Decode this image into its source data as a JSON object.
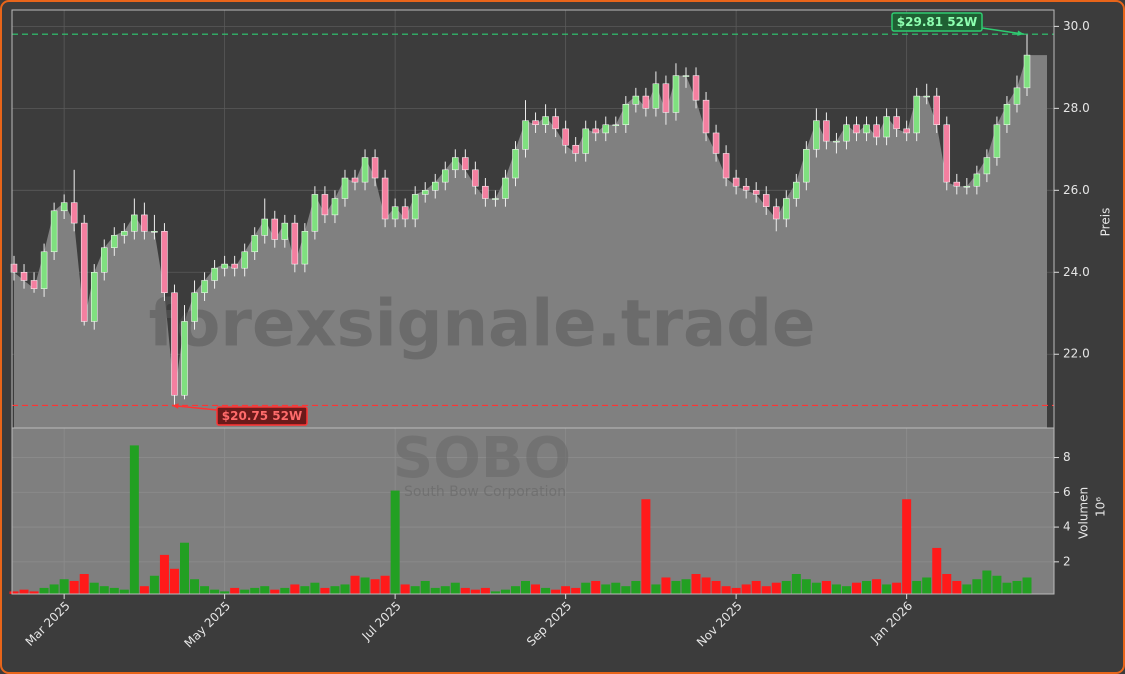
{
  "chart_data": [
    {
      "type": "candlestick",
      "ylabel": "Preis",
      "grid": true,
      "ylim": [
        20.2,
        30.4
      ],
      "yticks": [
        {
          "value": 22,
          "label": "22.0"
        },
        {
          "value": 24,
          "label": "24.0"
        },
        {
          "value": 26,
          "label": "26.0"
        },
        {
          "value": 28,
          "label": "28.0"
        },
        {
          "value": 30,
          "label": "30.0"
        }
      ],
      "up_color": "#7fe07f",
      "down_color": "#f47fa0",
      "area_color": "#808080",
      "watermark": "forexsignale.trade",
      "annotations": [
        {
          "text": "$29.81 52W",
          "value": 29.81,
          "color": "#2ecc71"
        },
        {
          "text": "$20.75 52W",
          "value": 20.75,
          "color": "#ff3333"
        }
      ],
      "open": [
        24.2,
        24.0,
        23.8,
        23.6,
        24.5,
        25.5,
        25.7,
        25.2,
        22.8,
        24.0,
        24.6,
        24.9,
        25.0,
        25.4,
        25.0,
        25.0,
        23.5,
        21.0,
        22.8,
        23.5,
        23.8,
        24.1,
        24.2,
        24.1,
        24.5,
        24.9,
        25.3,
        24.8,
        25.2,
        24.2,
        25.0,
        25.9,
        25.4,
        25.8,
        26.3,
        26.2,
        26.8,
        26.3,
        25.3,
        25.6,
        25.3,
        25.9,
        26.0,
        26.2,
        26.5,
        26.8,
        26.5,
        26.1,
        25.8,
        25.8,
        26.3,
        27.0,
        27.7,
        27.6,
        27.8,
        27.5,
        27.1,
        26.9,
        27.5,
        27.4,
        27.6,
        27.6,
        28.1,
        28.3,
        28.0,
        28.6,
        27.9,
        28.8,
        28.8,
        28.2,
        27.4,
        26.9,
        26.3,
        26.1,
        26.0,
        25.9,
        25.6,
        25.3,
        25.8,
        26.2,
        27.0,
        27.7,
        27.2,
        27.2,
        27.6,
        27.4,
        27.6,
        27.3,
        27.8,
        27.5,
        27.4,
        28.3,
        28.3,
        27.6,
        26.2,
        26.1,
        26.1,
        26.4,
        26.8,
        27.6,
        28.1,
        28.5
      ],
      "high": [
        24.4,
        24.2,
        24.0,
        24.7,
        25.7,
        25.9,
        26.5,
        25.4,
        24.2,
        24.8,
        25.1,
        25.2,
        25.8,
        25.7,
        25.4,
        25.2,
        23.7,
        23.2,
        23.8,
        24.0,
        24.3,
        24.4,
        24.4,
        24.7,
        25.1,
        25.8,
        25.5,
        25.4,
        25.4,
        25.2,
        26.1,
        26.1,
        26.0,
        26.5,
        26.5,
        27.0,
        27.0,
        26.5,
        25.8,
        25.8,
        26.1,
        26.2,
        26.4,
        26.7,
        27.0,
        27.0,
        26.7,
        26.3,
        26.0,
        26.5,
        27.2,
        28.2,
        27.9,
        28.1,
        28.0,
        27.7,
        27.3,
        27.7,
        27.7,
        27.8,
        27.8,
        28.3,
        28.5,
        28.5,
        28.9,
        28.8,
        29.1,
        29.0,
        29.0,
        28.4,
        27.6,
        27.1,
        26.5,
        26.3,
        26.2,
        26.1,
        25.8,
        26.0,
        26.4,
        27.2,
        28.0,
        27.9,
        27.4,
        27.8,
        27.8,
        27.8,
        27.8,
        28.0,
        28.0,
        27.7,
        28.5,
        28.6,
        28.5,
        27.8,
        26.4,
        26.3,
        26.6,
        27.0,
        27.8,
        28.3,
        28.8,
        29.81
      ],
      "low": [
        23.8,
        23.6,
        23.5,
        23.4,
        24.3,
        25.3,
        25.0,
        22.7,
        22.6,
        23.8,
        24.4,
        24.7,
        24.8,
        24.8,
        24.8,
        23.3,
        20.75,
        20.9,
        22.6,
        23.3,
        23.6,
        23.9,
        23.9,
        23.9,
        24.3,
        24.7,
        24.6,
        24.6,
        24.0,
        24.0,
        24.8,
        25.2,
        25.2,
        25.6,
        26.0,
        26.0,
        26.1,
        25.1,
        25.1,
        25.1,
        25.1,
        25.7,
        25.8,
        26.0,
        26.3,
        26.3,
        25.9,
        25.6,
        25.6,
        25.6,
        26.1,
        26.8,
        27.4,
        27.4,
        27.3,
        26.9,
        26.7,
        26.7,
        27.2,
        27.2,
        27.4,
        27.4,
        27.9,
        27.8,
        27.8,
        27.6,
        27.7,
        28.5,
        28.0,
        27.2,
        26.7,
        26.1,
        25.9,
        25.8,
        25.7,
        25.4,
        25.0,
        25.1,
        25.6,
        26.0,
        26.8,
        27.0,
        26.9,
        27.0,
        27.2,
        27.2,
        27.1,
        27.1,
        27.3,
        27.2,
        27.2,
        28.1,
        27.4,
        26.0,
        25.9,
        25.9,
        25.9,
        26.2,
        26.6,
        27.4,
        27.9,
        28.3
      ],
      "close": [
        24.0,
        23.8,
        23.6,
        24.5,
        25.5,
        25.7,
        25.2,
        22.8,
        24.0,
        24.6,
        24.9,
        25.0,
        25.4,
        25.0,
        25.0,
        23.5,
        21.0,
        22.8,
        23.5,
        23.8,
        24.1,
        24.2,
        24.1,
        24.5,
        24.9,
        25.3,
        24.8,
        25.2,
        24.2,
        25.0,
        25.9,
        25.4,
        25.8,
        26.3,
        26.2,
        26.8,
        26.3,
        25.3,
        25.6,
        25.3,
        25.9,
        26.0,
        26.2,
        26.5,
        26.8,
        26.5,
        26.1,
        25.8,
        25.8,
        26.3,
        27.0,
        27.7,
        27.6,
        27.8,
        27.5,
        27.1,
        26.9,
        27.5,
        27.4,
        27.6,
        27.6,
        28.1,
        28.3,
        28.0,
        28.6,
        27.9,
        28.8,
        28.8,
        28.2,
        27.4,
        26.9,
        26.3,
        26.1,
        26.0,
        25.9,
        25.6,
        25.3,
        25.8,
        26.2,
        27.0,
        27.7,
        27.2,
        27.2,
        27.6,
        27.4,
        27.6,
        27.3,
        27.8,
        27.5,
        27.4,
        28.3,
        28.3,
        27.6,
        26.2,
        26.1,
        26.1,
        26.4,
        26.8,
        27.6,
        28.1,
        28.5,
        29.3
      ]
    },
    {
      "type": "bar",
      "ylabel": "Volumen",
      "scale_label": "10⁶",
      "grid": true,
      "symbol": "SOBO",
      "company": "South Bow Corporation",
      "ylim": [
        0.15,
        9.7
      ],
      "yticks": [
        2,
        4,
        6,
        8
      ],
      "up_color": "#22a022",
      "down_color": "#ff1a1a",
      "categories": [
        null,
        null,
        null,
        null,
        null,
        "Mar 2025",
        null,
        null,
        null,
        null,
        null,
        null,
        null,
        null,
        null,
        null,
        null,
        null,
        null,
        null,
        null,
        "May 2025",
        null,
        null,
        null,
        null,
        null,
        null,
        null,
        null,
        null,
        null,
        null,
        null,
        null,
        null,
        null,
        null,
        "Jul 2025",
        null,
        null,
        null,
        null,
        null,
        null,
        null,
        null,
        null,
        null,
        null,
        null,
        null,
        null,
        null,
        null,
        "Sep 2025",
        null,
        null,
        null,
        null,
        null,
        null,
        null,
        null,
        null,
        null,
        null,
        null,
        null,
        null,
        null,
        null,
        "Nov 2025",
        null,
        null,
        null,
        null,
        null,
        null,
        null,
        null,
        null,
        null,
        null,
        null,
        null,
        null,
        null,
        null,
        "Jan 2026",
        null,
        null,
        null,
        null,
        null,
        null,
        null,
        null,
        null,
        null,
        null,
        null
      ],
      "values": [
        0.3,
        0.4,
        0.3,
        0.5,
        0.7,
        1.0,
        0.9,
        1.3,
        0.8,
        0.6,
        0.5,
        0.4,
        8.7,
        0.6,
        1.2,
        2.4,
        1.6,
        3.1,
        1.0,
        0.6,
        0.4,
        0.3,
        0.5,
        0.4,
        0.5,
        0.6,
        0.4,
        0.5,
        0.7,
        0.6,
        0.8,
        0.5,
        0.6,
        0.7,
        1.2,
        1.1,
        1.0,
        1.2,
        6.1,
        0.7,
        0.6,
        0.9,
        0.5,
        0.6,
        0.8,
        0.5,
        0.4,
        0.5,
        0.3,
        0.4,
        0.6,
        0.9,
        0.7,
        0.5,
        0.4,
        0.6,
        0.5,
        0.8,
        0.9,
        0.7,
        0.8,
        0.6,
        0.9,
        5.6,
        0.7,
        1.1,
        0.9,
        1.0,
        1.3,
        1.1,
        0.9,
        0.6,
        0.5,
        0.7,
        0.9,
        0.6,
        0.8,
        0.9,
        1.3,
        1.0,
        0.8,
        0.9,
        0.7,
        0.6,
        0.8,
        0.9,
        1.0,
        0.7,
        0.8,
        5.6,
        0.9,
        1.1,
        2.8,
        1.3,
        0.9,
        0.7,
        1.0,
        1.5,
        1.2,
        0.8,
        0.9,
        1.1
      ]
    }
  ]
}
